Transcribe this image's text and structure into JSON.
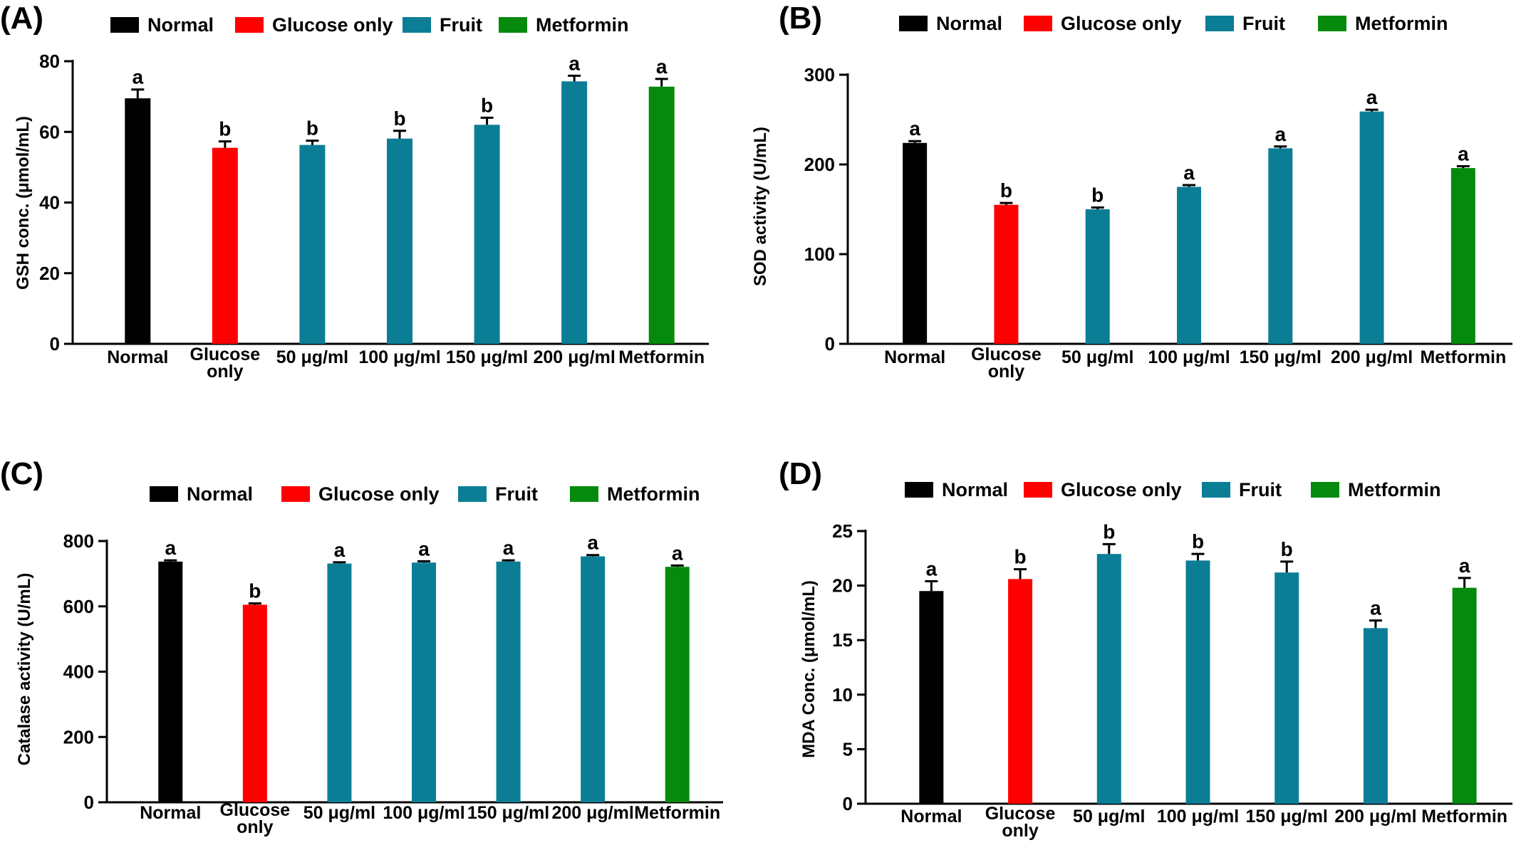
{
  "legend": {
    "items": [
      {
        "label": "Normal",
        "color": "#000000"
      },
      {
        "label": "Glucose only",
        "color": "#ff0000"
      },
      {
        "label": "Fruit",
        "color": "#0b7e96"
      },
      {
        "label": "Metformin",
        "color": "#058a0d"
      }
    ]
  },
  "chart_data": [
    {
      "panel": "(A)",
      "type": "bar",
      "ylabel": "GSH conc. (μmol/mL)",
      "ylim": [
        0,
        80
      ],
      "yticks": [
        0,
        20,
        40,
        60,
        80
      ],
      "categories": [
        "Normal",
        "Glucose only",
        "50 μg/ml",
        "100 μg/ml",
        "150 μg/ml",
        "200 μg/ml",
        "Metformin"
      ],
      "groups": [
        "Normal",
        "Glucose only",
        "Fruit",
        "Fruit",
        "Fruit",
        "Fruit",
        "Metformin"
      ],
      "values": [
        69.5,
        55.5,
        56.3,
        58.1,
        62,
        74.3,
        72.8
      ],
      "errors": [
        2.5,
        1.8,
        1.2,
        2.2,
        2.0,
        1.6,
        2.2
      ],
      "significance": [
        "a",
        "b",
        "b",
        "b",
        "b",
        "a",
        "a"
      ]
    },
    {
      "panel": "(B)",
      "type": "bar",
      "ylabel": "SOD activity (U/mL)",
      "ylim": [
        0,
        300
      ],
      "yticks": [
        0,
        100,
        200,
        300
      ],
      "categories": [
        "Normal",
        "Glucose only",
        "50 μg/ml",
        "100 μg/ml",
        "150 μg/ml",
        "200 μg/ml",
        "Metformin"
      ],
      "groups": [
        "Normal",
        "Glucose only",
        "Fruit",
        "Fruit",
        "Fruit",
        "Fruit",
        "Metformin"
      ],
      "values": [
        224,
        155,
        150,
        175,
        218,
        259,
        196
      ],
      "errors": [
        2,
        2,
        2,
        2,
        2,
        2,
        2
      ],
      "significance": [
        "a",
        "b",
        "b",
        "a",
        "a",
        "a",
        "a"
      ]
    },
    {
      "panel": "(C)",
      "type": "bar",
      "ylabel": "Catalase activity (U/mL)",
      "ylim": [
        0,
        800
      ],
      "yticks": [
        0,
        200,
        400,
        600,
        800
      ],
      "categories": [
        "Normal",
        "Glucose only",
        "50 μg/ml",
        "100 μg/ml",
        "150 μg/ml",
        "200 μg/ml",
        "Metformin"
      ],
      "groups": [
        "Normal",
        "Glucose only",
        "Fruit",
        "Fruit",
        "Fruit",
        "Fruit",
        "Metformin"
      ],
      "values": [
        737,
        605,
        731,
        734,
        737,
        753,
        721
      ],
      "errors": [
        4,
        4,
        4,
        4,
        4,
        4,
        4
      ],
      "significance": [
        "a",
        "b",
        "a",
        "a",
        "a",
        "a",
        "a"
      ]
    },
    {
      "panel": "(D)",
      "type": "bar",
      "ylabel": "MDA Conc. (μmol/mL)",
      "ylim": [
        0,
        25
      ],
      "yticks": [
        0,
        5,
        10,
        15,
        20,
        25
      ],
      "categories": [
        "Normal",
        "Glucose only",
        "50 μg/ml",
        "100 μg/ml",
        "150 μg/ml",
        "200 μg/ml",
        "Metformin"
      ],
      "groups": [
        "Normal",
        "Glucose only",
        "Fruit",
        "Fruit",
        "Fruit",
        "Fruit",
        "Metformin"
      ],
      "values": [
        19.5,
        20.6,
        22.9,
        22.3,
        21.2,
        16.1,
        19.8
      ],
      "errors": [
        0.9,
        0.9,
        0.9,
        0.6,
        1.0,
        0.7,
        0.9
      ],
      "significance": [
        "a",
        "b",
        "b",
        "b",
        "b",
        "a",
        "a"
      ]
    }
  ]
}
